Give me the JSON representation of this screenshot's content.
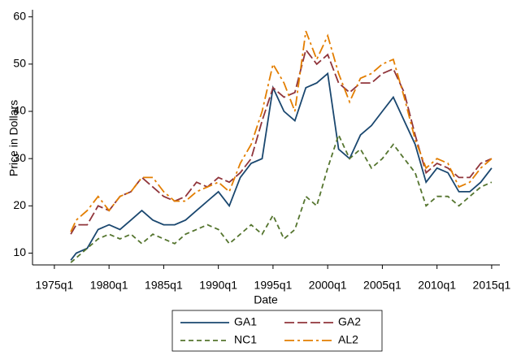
{
  "chart_data": {
    "type": "line",
    "y_label": "Price in Dollars",
    "x_label": "Date",
    "x": [
      "1976q3",
      "1977q1",
      "1978q1",
      "1979q1",
      "1980q1",
      "1981q1",
      "1982q1",
      "1983q1",
      "1984q1",
      "1985q1",
      "1986q1",
      "1987q1",
      "1988q1",
      "1989q1",
      "1990q1",
      "1991q1",
      "1992q1",
      "1993q1",
      "1994q1",
      "1995q1",
      "1996q1",
      "1997q1",
      "1998q1",
      "1999q1",
      "2000q1",
      "2001q1",
      "2002q1",
      "2003q1",
      "2004q1",
      "2005q1",
      "2006q1",
      "2007q1",
      "2008q1",
      "2009q1",
      "2010q1",
      "2011q1",
      "2012q1",
      "2013q1",
      "2014q1",
      "2015q1"
    ],
    "series": [
      {
        "name": "GA1",
        "color": "#1a476f",
        "dash": "none",
        "values": [
          8.5,
          10,
          11,
          15,
          16,
          15,
          17,
          19,
          17,
          16,
          16,
          17,
          19,
          21,
          23,
          20,
          26,
          29,
          30,
          45,
          40,
          38,
          45,
          46,
          48,
          32,
          30,
          35,
          37,
          40,
          43,
          38,
          33,
          25,
          28,
          27,
          23,
          23,
          25,
          28
        ]
      },
      {
        "name": "GA2",
        "color": "#90353b",
        "dash": "12,4",
        "values": [
          14,
          16,
          16,
          20,
          19,
          22,
          23,
          26,
          24,
          22,
          21,
          22,
          25,
          24,
          26,
          25,
          27,
          30,
          38,
          45,
          43,
          44,
          53,
          50,
          52,
          46,
          44,
          46,
          46,
          48,
          49,
          44,
          35,
          27,
          29,
          28,
          26,
          26,
          29,
          30
        ]
      },
      {
        "name": "NC1",
        "color": "#55752f",
        "dash": "6,4",
        "values": [
          8,
          9,
          11,
          13,
          14,
          13,
          14,
          12,
          14,
          13,
          12,
          14,
          15,
          16,
          15,
          12,
          14,
          16,
          14,
          18,
          13,
          15,
          22,
          20,
          28,
          35,
          30,
          32,
          28,
          30,
          33,
          30,
          27,
          20,
          22,
          22,
          20,
          22,
          24,
          25
        ]
      },
      {
        "name": "AL2",
        "color": "#e37e00",
        "dash": "12,4,3,4",
        "values": [
          14.5,
          17,
          19,
          22,
          19,
          22,
          23,
          26,
          26,
          23,
          21,
          21,
          23,
          24,
          25,
          23,
          29,
          33,
          40,
          50,
          46,
          40,
          57,
          51,
          56,
          48,
          42,
          47,
          48,
          50,
          51,
          43,
          34,
          28,
          30,
          29,
          24,
          25,
          28,
          30
        ]
      }
    ],
    "xlim": [
      "1973q1",
      "2015q4"
    ],
    "xticks": [
      "1975q1",
      "1980q1",
      "1985q1",
      "1990q1",
      "1995q1",
      "2000q1",
      "2005q1",
      "2010q1",
      "2015q1"
    ],
    "ylim": [
      7.5,
      61.5
    ],
    "yticks": [
      10,
      20,
      30,
      40,
      50,
      60
    ],
    "legend": "bottom"
  }
}
